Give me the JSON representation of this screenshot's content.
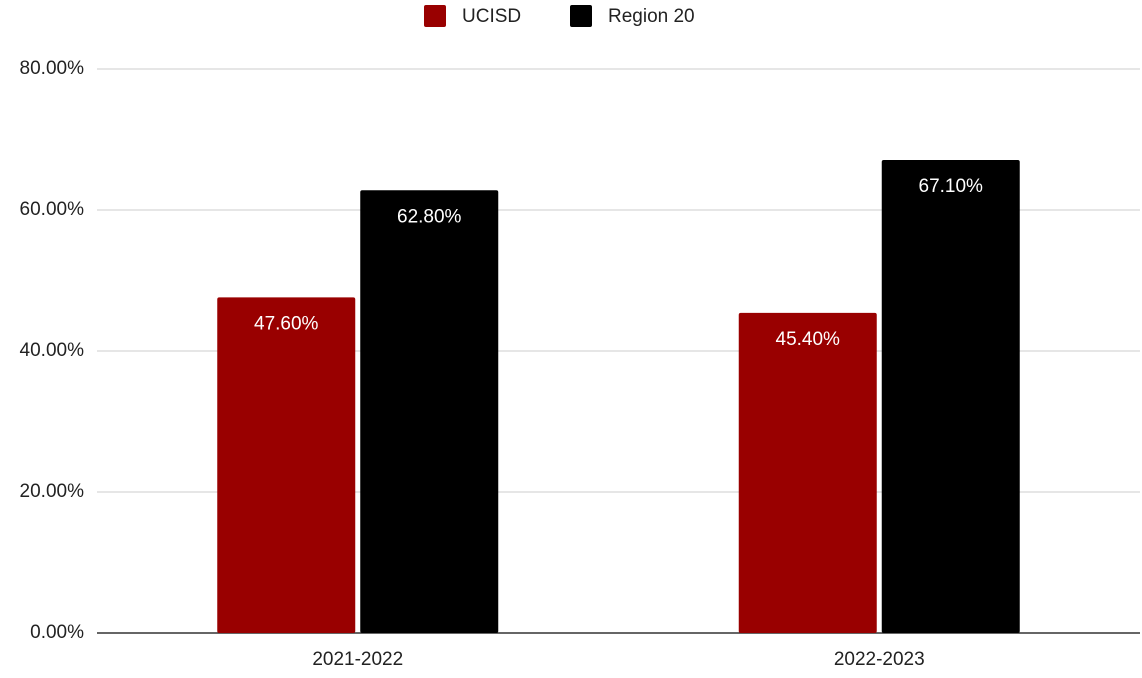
{
  "chart_data": {
    "type": "bar",
    "categories": [
      "2021-2022",
      "2022-2023"
    ],
    "series": [
      {
        "name": "UCISD",
        "color": "#990000",
        "values": [
          47.6,
          45.4
        ],
        "value_labels": [
          "47.60%",
          "45.40%"
        ]
      },
      {
        "name": "Region 20",
        "color": "#000000",
        "values": [
          62.8,
          67.1
        ],
        "value_labels": [
          "62.80%",
          "67.10%"
        ]
      }
    ],
    "ylim": [
      0,
      80
    ],
    "yticks": [
      {
        "value": 0,
        "label": "0.00%"
      },
      {
        "value": 20,
        "label": "20.00%"
      },
      {
        "value": 40,
        "label": "40.00%"
      },
      {
        "value": 60,
        "label": "60.00%"
      },
      {
        "value": 80,
        "label": "80.00%"
      }
    ],
    "grid": true,
    "legend": "top"
  }
}
